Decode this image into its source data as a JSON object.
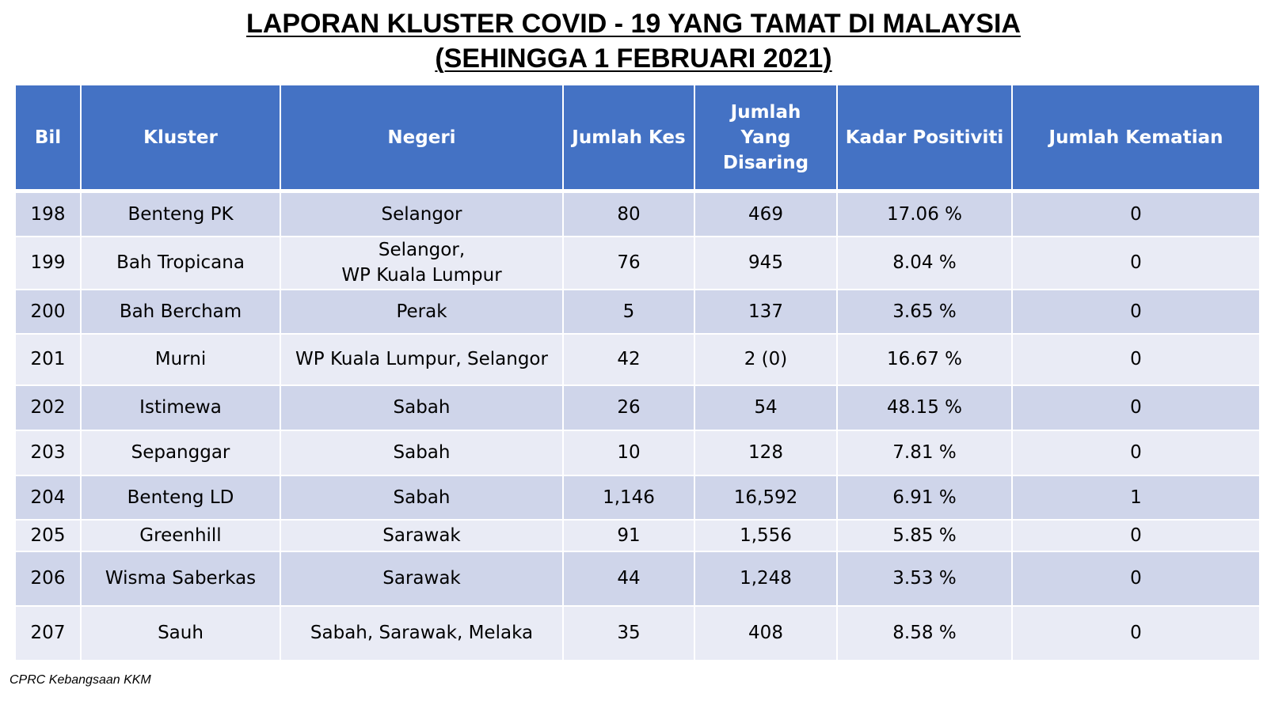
{
  "title": {
    "line1": "LAPORAN KLUSTER COVID - 19 YANG TAMAT DI MALAYSIA",
    "line2": "(SEHINGGA 1 FEBRUARI 2021)"
  },
  "colors": {
    "header_bg": "#4472c4",
    "row_odd_bg": "#cfd5ea",
    "row_even_bg": "#e9ebf5"
  },
  "table": {
    "headers": [
      "Bil",
      "Kluster",
      "Negeri",
      "Jumlah Kes",
      "Jumlah Yang Disaring",
      "Kadar Positiviti",
      "Jumlah Kematian"
    ],
    "rows": [
      {
        "bil": "198",
        "kluster": "Benteng PK",
        "negeri": [
          "Selangor"
        ],
        "kes": "80",
        "disaring": "469",
        "positiviti": "17.06 %",
        "kematian": "0"
      },
      {
        "bil": "199",
        "kluster": "Bah Tropicana",
        "negeri": [
          "Selangor,",
          "WP Kuala Lumpur"
        ],
        "kes": "76",
        "disaring": "945",
        "positiviti": "8.04 %",
        "kematian": "0"
      },
      {
        "bil": "200",
        "kluster": "Bah Bercham",
        "negeri": [
          "Perak"
        ],
        "kes": "5",
        "disaring": "137",
        "positiviti": "3.65 %",
        "kematian": "0"
      },
      {
        "bil": "201",
        "kluster": "Murni",
        "negeri": [
          "WP Kuala Lumpur, Selangor"
        ],
        "kes": "42",
        "disaring": "2 (0)",
        "positiviti": "16.67 %",
        "kematian": "0"
      },
      {
        "bil": "202",
        "kluster": "Istimewa",
        "negeri": [
          "Sabah"
        ],
        "kes": "26",
        "disaring": "54",
        "positiviti": "48.15 %",
        "kematian": "0"
      },
      {
        "bil": "203",
        "kluster": "Sepanggar",
        "negeri": [
          "Sabah"
        ],
        "kes": "10",
        "disaring": "128",
        "positiviti": "7.81 %",
        "kematian": "0"
      },
      {
        "bil": "204",
        "kluster": "Benteng LD",
        "negeri": [
          "Sabah"
        ],
        "kes": "1,146",
        "disaring": "16,592",
        "positiviti": "6.91 %",
        "kematian": "1"
      },
      {
        "bil": "205",
        "kluster": "Greenhill",
        "negeri": [
          "Sarawak"
        ],
        "kes": "91",
        "disaring": "1,556",
        "positiviti": "5.85 %",
        "kematian": "0"
      },
      {
        "bil": "206",
        "kluster": "Wisma Saberkas",
        "negeri": [
          "Sarawak"
        ],
        "kes": "44",
        "disaring": "1,248",
        "positiviti": "3.53 %",
        "kematian": "0"
      },
      {
        "bil": "207",
        "kluster": "Sauh",
        "negeri": [
          "Sabah, Sarawak, Melaka"
        ],
        "kes": "35",
        "disaring": "408",
        "positiviti": "8.58 %",
        "kematian": "0"
      }
    ]
  },
  "footer": {
    "source": "CPRC Kebangsaan KKM"
  }
}
